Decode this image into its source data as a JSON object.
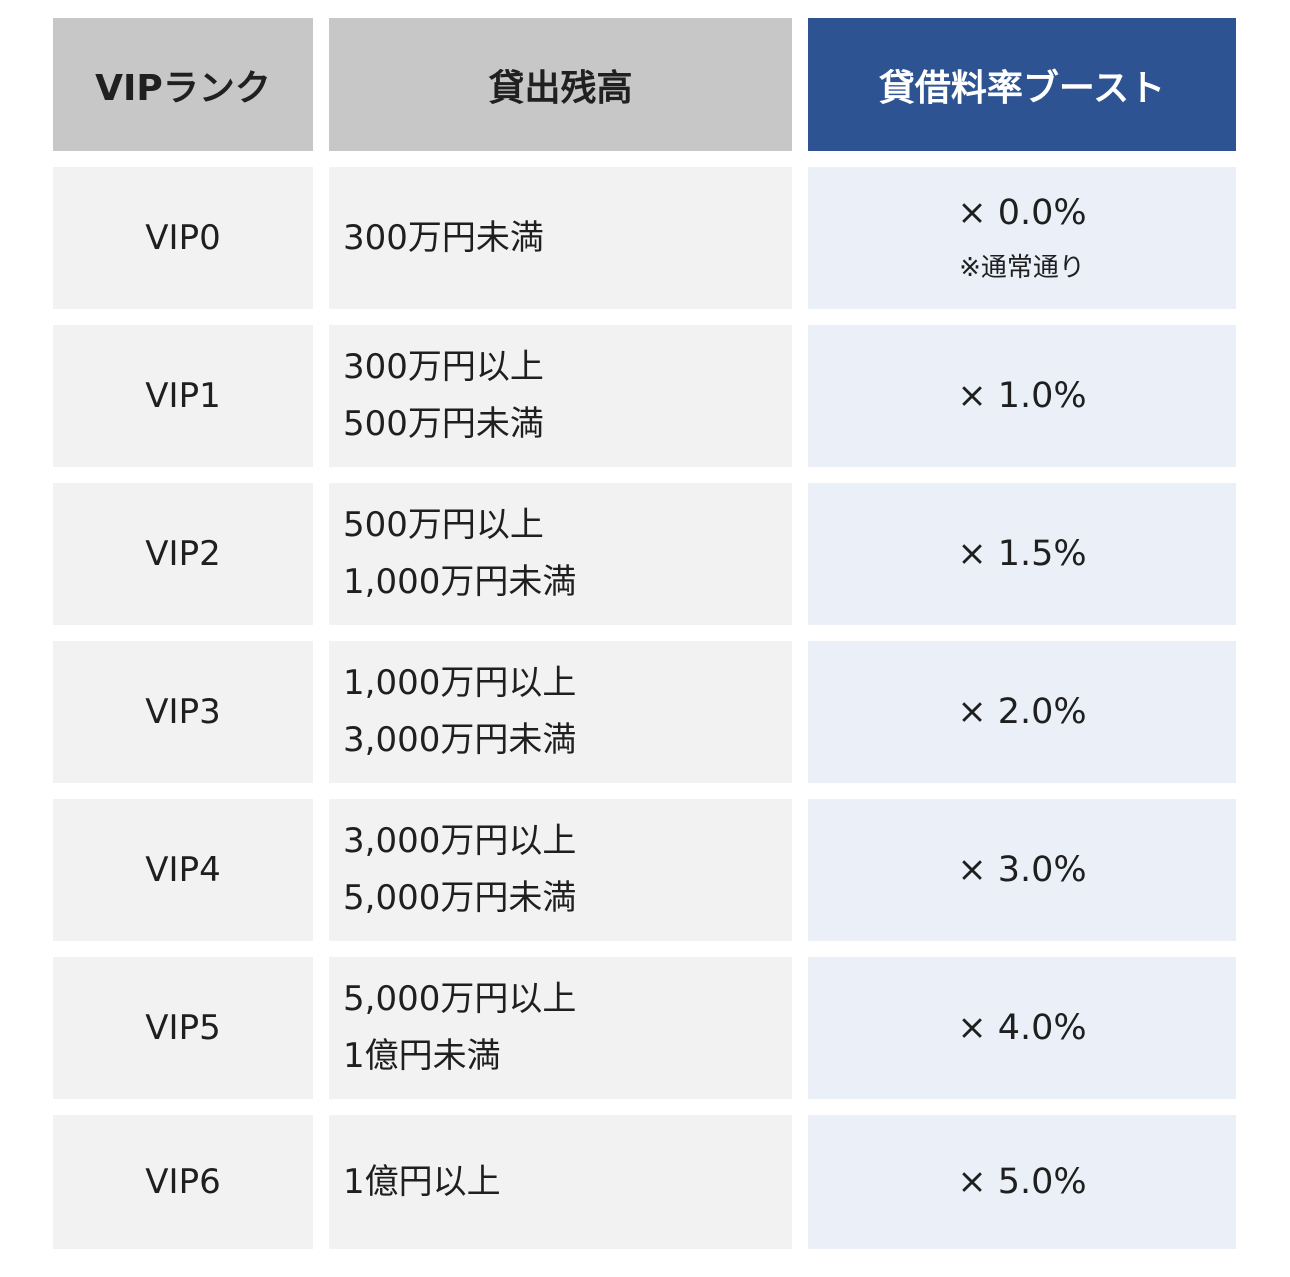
{
  "headers": {
    "rank": "VIPランク",
    "balance": "貸出残高",
    "boost": "貸借料率ブースト"
  },
  "rows": [
    {
      "rank": "VIP0",
      "balance_line1": "300万円未満",
      "balance_line2": "",
      "boost": "× 0.0%",
      "note": "※通常通り"
    },
    {
      "rank": "VIP1",
      "balance_line1": "300万円以上",
      "balance_line2": "500万円未満",
      "boost": "× 1.0%",
      "note": ""
    },
    {
      "rank": "VIP2",
      "balance_line1": "500万円以上",
      "balance_line2": "1,000万円未満",
      "boost": "× 1.5%",
      "note": ""
    },
    {
      "rank": "VIP3",
      "balance_line1": "1,000万円以上",
      "balance_line2": "3,000万円未満",
      "boost": "× 2.0%",
      "note": ""
    },
    {
      "rank": "VIP4",
      "balance_line1": "3,000万円以上",
      "balance_line2": "5,000万円未満",
      "boost": "× 3.0%",
      "note": ""
    },
    {
      "rank": "VIP5",
      "balance_line1": "5,000万円以上",
      "balance_line2": "1億円未満",
      "boost": "× 4.0%",
      "note": ""
    },
    {
      "rank": "VIP6",
      "balance_line1": "1億円以上",
      "balance_line2": "",
      "boost": "× 5.0%",
      "note": ""
    }
  ],
  "colors": {
    "header_gray": "#c7c7c7",
    "header_accent": "#2e5393",
    "cell_gray": "#f2f2f2",
    "cell_blue": "#ebf0f8"
  }
}
